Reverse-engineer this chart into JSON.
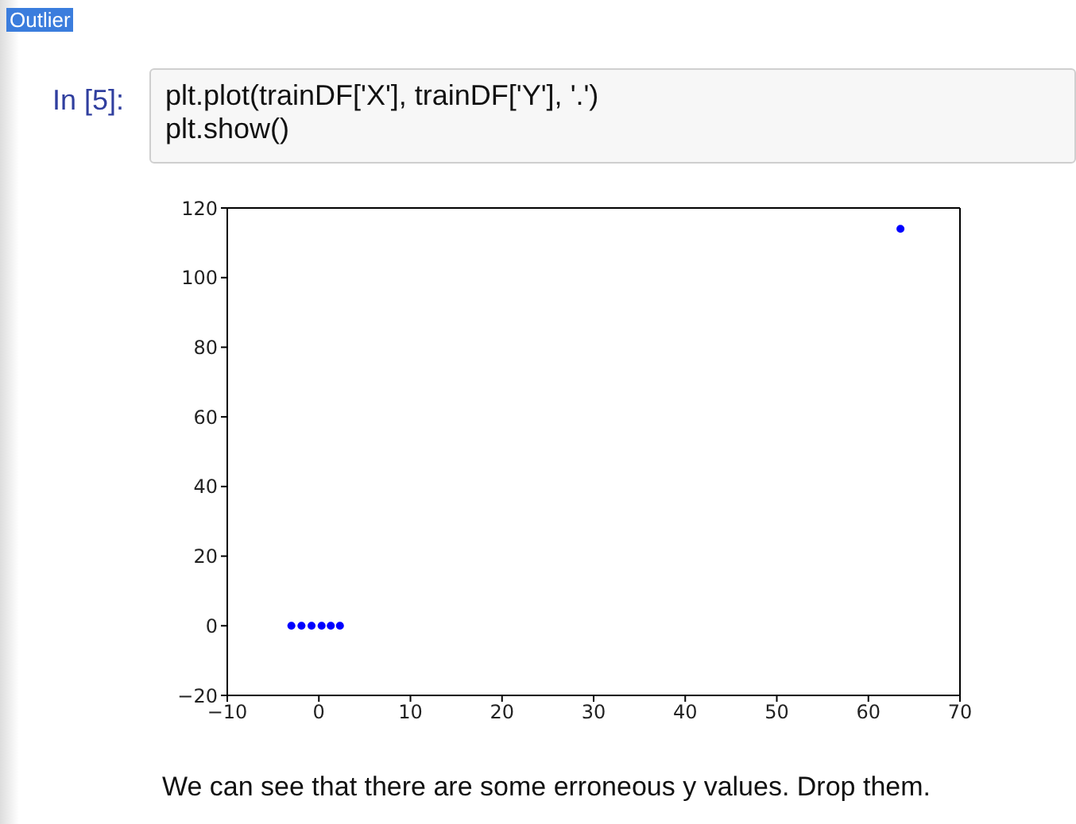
{
  "chart_data": {
    "type": "scatter",
    "annotations": [
      "Outlier",
      "In [5]:",
      "plt.plot(trainDF['X'], trainDF['Y'], '.')",
      "plt.show()",
      "We can see that there are some erroneous y values. Drop them."
    ],
    "series": [
      {
        "color": "#0000ff",
        "x": [
          -3,
          -1.9,
          -0.8,
          0.3,
          1.3,
          2.3,
          63.5
        ],
        "values": [
          0,
          0,
          0,
          0,
          0,
          0,
          114
        ]
      }
    ],
    "xlim": [
      -10,
      70
    ],
    "xticks": [
      -10,
      0,
      10,
      20,
      30,
      40,
      50,
      60,
      70
    ],
    "ylim": [
      -20,
      120
    ],
    "yticks": [
      -20,
      0,
      20,
      40,
      60,
      80,
      100,
      120
    ],
    "legend": false,
    "marker": "circle"
  }
}
